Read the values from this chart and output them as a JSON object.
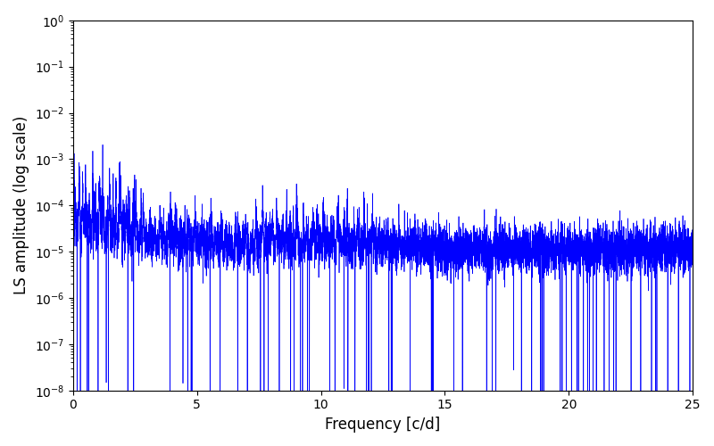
{
  "xlabel": "Frequency [c/d]",
  "ylabel": "LS amplitude (log scale)",
  "xlim": [
    0,
    25
  ],
  "ylim": [
    1e-08,
    1.0
  ],
  "line_color": "#0000FF",
  "line_width": 0.5,
  "background_color": "#ffffff",
  "figsize": [
    8.0,
    5.0
  ],
  "dpi": 100,
  "freq_max": 25.0,
  "n_points": 8000,
  "seed": 12345
}
